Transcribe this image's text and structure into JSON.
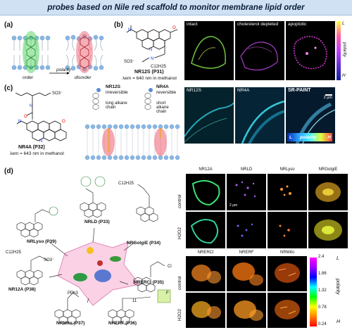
{
  "header": {
    "title": "probes based on Nile red scaffold to monitor membrane lipid order"
  },
  "panel_labels": {
    "a": "(a)",
    "b": "(b)",
    "c": "(c)",
    "d": "(d)"
  },
  "panel_a": {
    "order": "order",
    "polarity": "polarity",
    "disorder": "disorder"
  },
  "panel_b": {
    "probe_name": "NR12S (P31)",
    "lambda": "λem = 640 nm in methanol",
    "chem_labels": {
      "c12": "C12H25",
      "so3": "SO3⁻"
    },
    "images": [
      "intact",
      "cholesterol depleted",
      "apoptotic"
    ],
    "colorbar": {
      "top": "L",
      "mid": "polarity",
      "bottom": "H"
    }
  },
  "panel_c": {
    "probe_name": "NR4A (P32)",
    "lambda": "λem = 643 nm in methanol",
    "nr12s_title": "NR12S",
    "nr12s_sub": "irreversible",
    "nr12s_chain": "long alkane chain",
    "nr4a_title": "NR4A",
    "nr4a_sub": "reversible",
    "nr4a_chain": "short alkane chain",
    "images": [
      "NR12S",
      "NR4A",
      "SR-PAINT"
    ],
    "scale": "2 μm",
    "polarity_bar": {
      "left": "L",
      "mid": "polarity",
      "right": "H"
    }
  },
  "panel_d": {
    "probes": {
      "nrlyso": "NRLyso (P39)",
      "nrld": "NRLD (P33)",
      "nrgolgi": "NRGolgiE (P34)",
      "nr12a": "NR12A (P38)",
      "nrercl": "NRERCl (P35)",
      "nrmito": "NRMito (P37)",
      "nrerf": "NRERF (P36)"
    },
    "chem_labels": {
      "c12": "C12H25",
      "so3": "SO3⁻",
      "pph3": "PPh3",
      "cl": "Cl",
      "f": "F",
      "n11": "11"
    },
    "grid1_cols": [
      "NR12A",
      "NRLD",
      "NRLyso",
      "NRGolgiE"
    ],
    "grid2_cols": [
      "NRERCl",
      "NRERF",
      "NRMito"
    ],
    "rows": [
      "control",
      "H2O2"
    ],
    "scale": "2 μm",
    "colorbar": {
      "ticks": [
        "2.4",
        "1.86",
        "1.32",
        "0.78",
        "0.24"
      ],
      "top": "L",
      "mid": "polarity",
      "bottom": "H"
    }
  }
}
